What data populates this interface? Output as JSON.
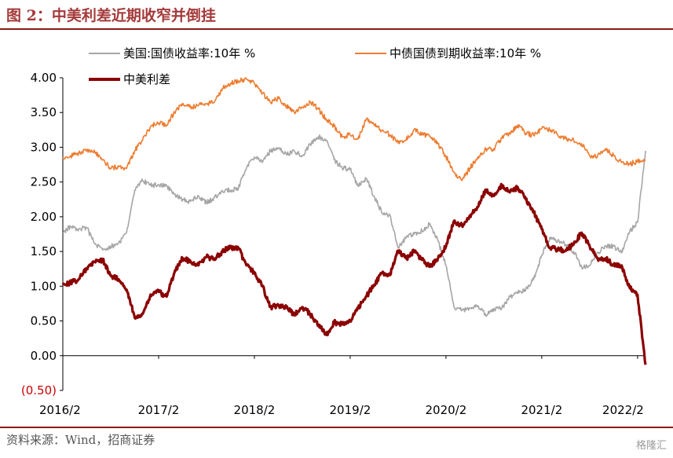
{
  "title": "图 2：中美利差近期收窄并倒挂",
  "source": "资料来源：Wind，招商证券",
  "watermark": "格隆汇",
  "chart_data": {
    "type": "line",
    "ylim": [
      -0.5,
      4.0
    ],
    "y_ticks": [
      -0.5,
      0,
      0.5,
      1.0,
      1.5,
      2.0,
      2.5,
      3.0,
      3.5,
      4.0
    ],
    "y_tick_labels": [
      "(0.50)",
      "0.00",
      "0.50",
      "1.00",
      "1.50",
      "2.00",
      "2.50",
      "3.00",
      "3.50",
      "4.00"
    ],
    "x_range": [
      "2016-02",
      "2022-03"
    ],
    "x_ticks": [
      "2016-02",
      "2017-02",
      "2018-02",
      "2019-02",
      "2020-02",
      "2021-02",
      "2022-02"
    ],
    "x_tick_labels": [
      "2016/2",
      "2017/2",
      "2018/2",
      "2019/2",
      "2020/2",
      "2021/2",
      "2022/2"
    ],
    "legend": [
      "美国:国债收益率:10年 %",
      "中债国债到期收益率:10年 %",
      "中美利差"
    ],
    "series": [
      {
        "name": "美国:国债收益率:10年 %",
        "color": "#a6a6a6",
        "x": [
          "2016-02",
          "2016-03",
          "2016-04",
          "2016-05",
          "2016-06",
          "2016-07",
          "2016-08",
          "2016-09",
          "2016-10",
          "2016-11",
          "2016-12",
          "2017-01",
          "2017-02",
          "2017-03",
          "2017-04",
          "2017-05",
          "2017-06",
          "2017-07",
          "2017-08",
          "2017-09",
          "2017-10",
          "2017-11",
          "2017-12",
          "2018-01",
          "2018-02",
          "2018-03",
          "2018-04",
          "2018-05",
          "2018-06",
          "2018-07",
          "2018-08",
          "2018-09",
          "2018-10",
          "2018-11",
          "2018-12",
          "2019-01",
          "2019-02",
          "2019-03",
          "2019-04",
          "2019-05",
          "2019-06",
          "2019-07",
          "2019-08",
          "2019-09",
          "2019-10",
          "2019-11",
          "2019-12",
          "2020-01",
          "2020-02",
          "2020-03",
          "2020-04",
          "2020-05",
          "2020-06",
          "2020-07",
          "2020-08",
          "2020-09",
          "2020-10",
          "2020-11",
          "2020-12",
          "2021-01",
          "2021-02",
          "2021-03",
          "2021-04",
          "2021-05",
          "2021-06",
          "2021-07",
          "2021-08",
          "2021-09",
          "2021-10",
          "2021-11",
          "2021-12",
          "2022-01",
          "2022-02",
          "2022-03"
        ],
        "y": [
          1.78,
          1.86,
          1.82,
          1.84,
          1.62,
          1.52,
          1.57,
          1.62,
          1.78,
          2.38,
          2.52,
          2.45,
          2.46,
          2.45,
          2.32,
          2.25,
          2.22,
          2.3,
          2.2,
          2.28,
          2.37,
          2.38,
          2.41,
          2.7,
          2.86,
          2.78,
          2.95,
          2.98,
          2.9,
          2.94,
          2.88,
          3.05,
          3.15,
          3.1,
          2.82,
          2.7,
          2.68,
          2.44,
          2.55,
          2.3,
          2.05,
          2.02,
          1.55,
          1.7,
          1.75,
          1.8,
          1.9,
          1.65,
          1.3,
          0.7,
          0.65,
          0.68,
          0.72,
          0.58,
          0.68,
          0.68,
          0.85,
          0.9,
          0.95,
          1.1,
          1.45,
          1.7,
          1.65,
          1.6,
          1.5,
          1.28,
          1.3,
          1.48,
          1.58,
          1.58,
          1.48,
          1.78,
          1.92,
          2.95
        ]
      },
      {
        "name": "中债国债到期收益率:10年 %",
        "color": "#ed7d31",
        "x": [
          "2016-02",
          "2016-03",
          "2016-04",
          "2016-05",
          "2016-06",
          "2016-07",
          "2016-08",
          "2016-09",
          "2016-10",
          "2016-11",
          "2016-12",
          "2017-01",
          "2017-02",
          "2017-03",
          "2017-04",
          "2017-05",
          "2017-06",
          "2017-07",
          "2017-08",
          "2017-09",
          "2017-10",
          "2017-11",
          "2017-12",
          "2018-01",
          "2018-02",
          "2018-03",
          "2018-04",
          "2018-05",
          "2018-06",
          "2018-07",
          "2018-08",
          "2018-09",
          "2018-10",
          "2018-11",
          "2018-12",
          "2019-01",
          "2019-02",
          "2019-03",
          "2019-04",
          "2019-05",
          "2019-06",
          "2019-07",
          "2019-08",
          "2019-09",
          "2019-10",
          "2019-11",
          "2019-12",
          "2020-01",
          "2020-02",
          "2020-03",
          "2020-04",
          "2020-05",
          "2020-06",
          "2020-07",
          "2020-08",
          "2020-09",
          "2020-10",
          "2020-11",
          "2020-12",
          "2021-01",
          "2021-02",
          "2021-03",
          "2021-04",
          "2021-05",
          "2021-06",
          "2021-07",
          "2021-08",
          "2021-09",
          "2021-10",
          "2021-11",
          "2021-12",
          "2022-01",
          "2022-02",
          "2022-03"
        ],
        "y": [
          2.85,
          2.88,
          2.92,
          2.95,
          2.93,
          2.82,
          2.7,
          2.72,
          2.7,
          2.95,
          3.1,
          3.3,
          3.35,
          3.32,
          3.5,
          3.63,
          3.58,
          3.6,
          3.62,
          3.65,
          3.85,
          3.92,
          3.95,
          3.98,
          3.92,
          3.78,
          3.65,
          3.7,
          3.6,
          3.5,
          3.58,
          3.65,
          3.55,
          3.4,
          3.3,
          3.15,
          3.18,
          3.12,
          3.4,
          3.32,
          3.24,
          3.18,
          3.06,
          3.1,
          3.25,
          3.18,
          3.16,
          3.05,
          2.87,
          2.64,
          2.52,
          2.7,
          2.86,
          2.97,
          2.98,
          3.13,
          3.2,
          3.32,
          3.2,
          3.17,
          3.27,
          3.25,
          3.18,
          3.12,
          3.1,
          3.05,
          2.88,
          2.88,
          2.98,
          2.88,
          2.78,
          2.76,
          2.8,
          2.82
        ]
      },
      {
        "name": "中美利差",
        "color": "#8b0000",
        "x": [
          "2016-02",
          "2016-03",
          "2016-04",
          "2016-05",
          "2016-06",
          "2016-07",
          "2016-08",
          "2016-09",
          "2016-10",
          "2016-11",
          "2016-12",
          "2017-01",
          "2017-02",
          "2017-03",
          "2017-04",
          "2017-05",
          "2017-06",
          "2017-07",
          "2017-08",
          "2017-09",
          "2017-10",
          "2017-11",
          "2017-12",
          "2018-01",
          "2018-02",
          "2018-03",
          "2018-04",
          "2018-05",
          "2018-06",
          "2018-07",
          "2018-08",
          "2018-09",
          "2018-10",
          "2018-11",
          "2018-12",
          "2019-01",
          "2019-02",
          "2019-03",
          "2019-04",
          "2019-05",
          "2019-06",
          "2019-07",
          "2019-08",
          "2019-09",
          "2019-10",
          "2019-11",
          "2019-12",
          "2020-01",
          "2020-02",
          "2020-03",
          "2020-04",
          "2020-05",
          "2020-06",
          "2020-07",
          "2020-08",
          "2020-09",
          "2020-10",
          "2020-11",
          "2020-12",
          "2021-01",
          "2021-02",
          "2021-03",
          "2021-04",
          "2021-05",
          "2021-06",
          "2021-07",
          "2021-08",
          "2021-09",
          "2021-10",
          "2021-11",
          "2021-12",
          "2022-01",
          "2022-02",
          "2022-03"
        ],
        "y": [
          1.02,
          1.05,
          1.1,
          1.25,
          1.35,
          1.38,
          1.15,
          1.1,
          0.95,
          0.55,
          0.6,
          0.88,
          0.92,
          0.85,
          1.2,
          1.4,
          1.36,
          1.3,
          1.42,
          1.4,
          1.5,
          1.56,
          1.55,
          1.3,
          1.2,
          1.0,
          0.7,
          0.72,
          0.7,
          0.58,
          0.7,
          0.6,
          0.45,
          0.3,
          0.48,
          0.45,
          0.5,
          0.68,
          0.85,
          1.02,
          1.19,
          1.16,
          1.51,
          1.4,
          1.5,
          1.38,
          1.28,
          1.4,
          1.57,
          1.94,
          1.87,
          2.02,
          2.14,
          2.39,
          2.3,
          2.45,
          2.35,
          2.42,
          2.25,
          2.07,
          1.82,
          1.55,
          1.53,
          1.52,
          1.6,
          1.77,
          1.58,
          1.4,
          1.4,
          1.3,
          1.3,
          0.98,
          0.88,
          -0.13
        ]
      }
    ]
  }
}
